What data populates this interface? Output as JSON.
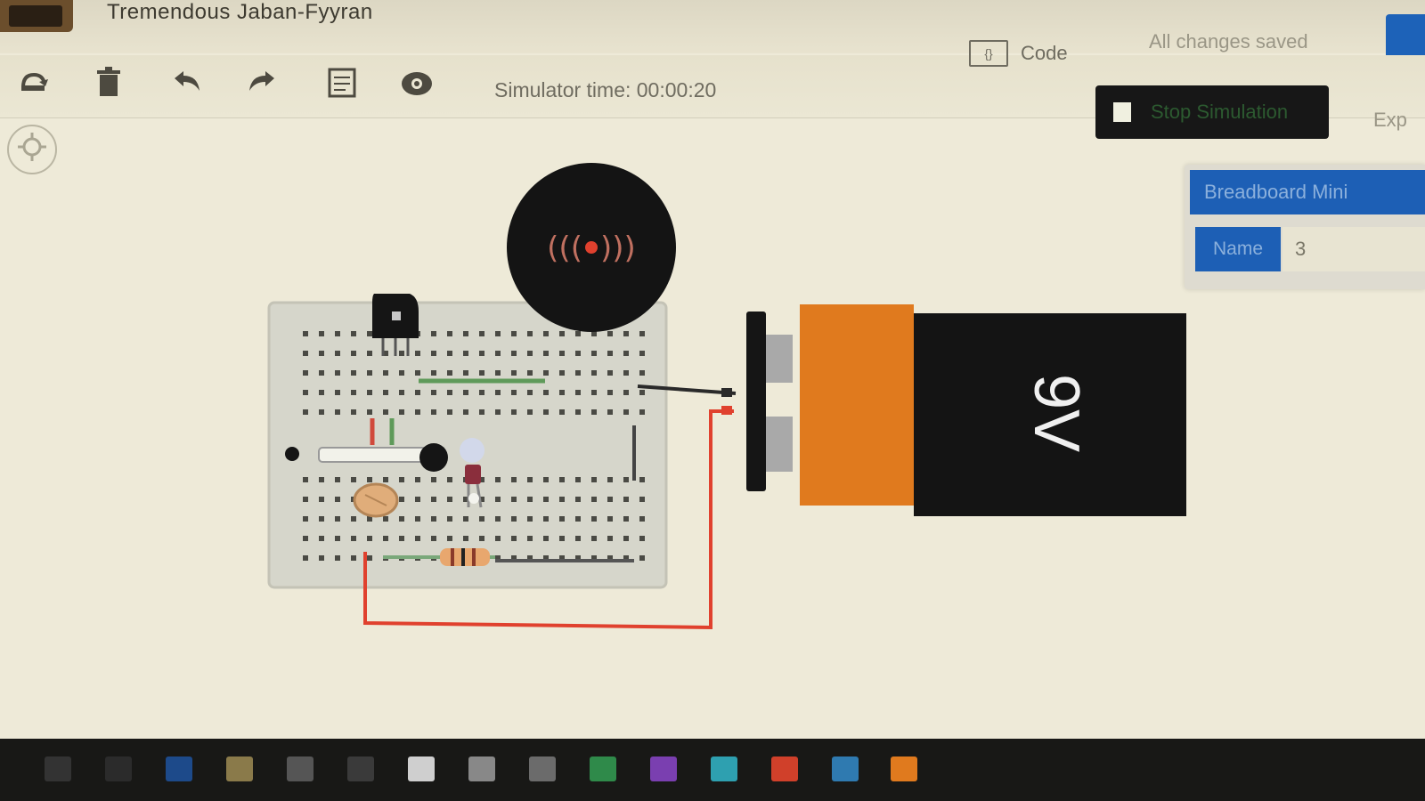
{
  "app": {
    "project_title": "Tremendous Jaban-Fyyran",
    "save_status": "All changes saved"
  },
  "toolbar": {
    "tools": [
      {
        "name": "rotate-icon"
      },
      {
        "name": "delete-icon"
      },
      {
        "name": "undo-icon"
      },
      {
        "name": "redo-icon"
      },
      {
        "name": "notes-icon"
      },
      {
        "name": "visibility-icon"
      }
    ],
    "simulator_timer": "Simulator time: 00:00:20",
    "code_label": "Code",
    "code_icon_text": "{}",
    "start_simulation_label": "Stop Simulation",
    "cut_off_label": "Exp"
  },
  "inspector": {
    "title": "Breadboard Mini",
    "name_label": "Name",
    "name_value": "3"
  },
  "canvas": {
    "battery_label": "9V",
    "buzzer_label": "(((•)))",
    "colors": {
      "battery_orange": "#e07a1e",
      "battery_black": "#141414",
      "wire_red": "#e0412e",
      "breadboard": "#d9d9d0",
      "accent_blue": "#1d5fb5"
    }
  }
}
